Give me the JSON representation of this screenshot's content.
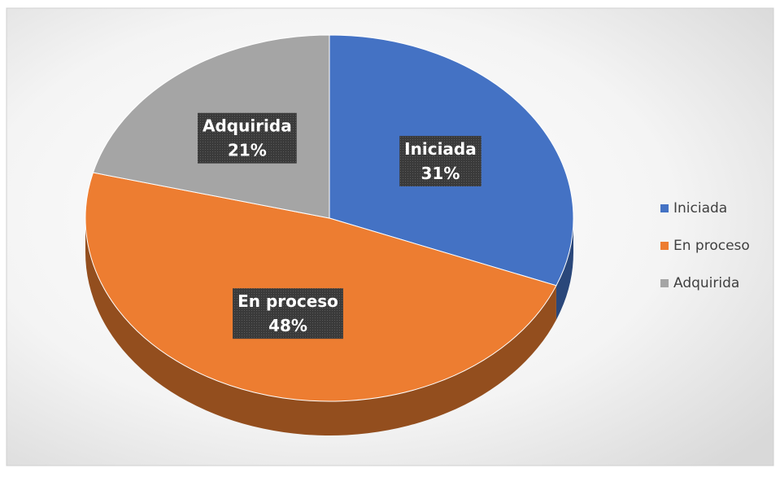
{
  "chart_data": {
    "type": "pie",
    "categories": [
      "Iniciada",
      "En proceso",
      "Adquirida"
    ],
    "values": [
      31,
      48,
      21
    ],
    "value_labels": [
      "31%",
      "48%",
      "21%"
    ],
    "colors": [
      "#4472c4",
      "#ed7d31",
      "#a5a5a5"
    ],
    "legend": "right"
  }
}
